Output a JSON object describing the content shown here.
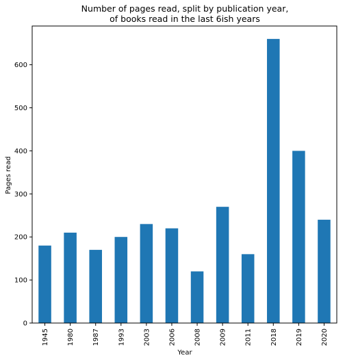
{
  "chart_data": {
    "type": "bar",
    "title_lines": [
      "Number of pages read, split by publication year,",
      "of books read in the last 6ish years"
    ],
    "xlabel": "Year",
    "ylabel": "Pages read",
    "categories": [
      "1945",
      "1980",
      "1987",
      "1993",
      "2003",
      "2006",
      "2008",
      "2009",
      "2011",
      "2018",
      "2019",
      "2020"
    ],
    "values": [
      180,
      210,
      170,
      200,
      230,
      220,
      120,
      270,
      160,
      660,
      400,
      240
    ],
    "ylim": [
      0,
      690
    ],
    "yticks": [
      0,
      100,
      200,
      300,
      400,
      500,
      600
    ],
    "bar_color": "#1f77b4",
    "legend": "none",
    "grid": false
  }
}
